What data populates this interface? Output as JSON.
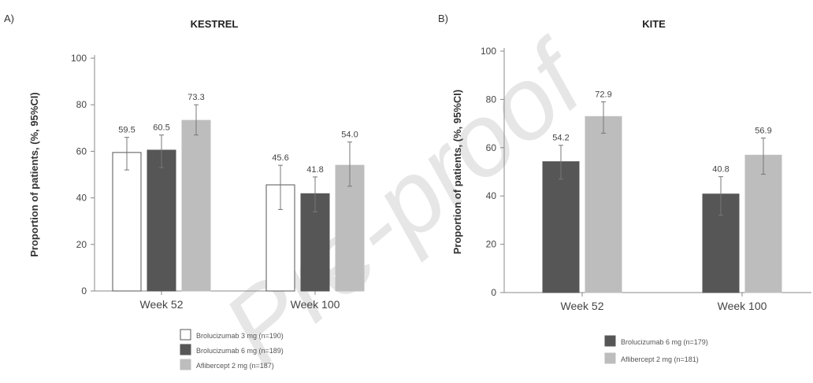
{
  "chart_data": [
    {
      "type": "bar",
      "panel_label": "A)",
      "title": "KESTREL",
      "ylabel": "Proportion of patients, (%, 95%CI)",
      "ylim": [
        0,
        100
      ],
      "yticks": [
        0,
        20,
        40,
        60,
        80,
        100
      ],
      "categories": [
        "Week 52",
        "Week 100"
      ],
      "series": [
        {
          "name": "Brolucizumab 3 mg (n=190)",
          "values": [
            59.5,
            45.6
          ],
          "ci_low": [
            52,
            35
          ],
          "ci_high": [
            66,
            54
          ],
          "color": "#ffffff",
          "stroke": "#555555"
        },
        {
          "name": "Brolucizumab 6 mg (n=189)",
          "values": [
            60.5,
            41.8
          ],
          "ci_low": [
            53,
            34
          ],
          "ci_high": [
            67,
            49
          ],
          "color": "#565656",
          "stroke": "#565656"
        },
        {
          "name": "Aflibercept 2 mg (n=187)",
          "values": [
            73.3,
            54.0
          ],
          "ci_low": [
            67,
            45
          ],
          "ci_high": [
            80,
            64
          ],
          "color": "#bdbdbd",
          "stroke": "#bdbdbd"
        }
      ],
      "data_labels": [
        [
          "59.5",
          "45.6"
        ],
        [
          "60.5",
          "41.8"
        ],
        [
          "73.3",
          "54.0"
        ]
      ]
    },
    {
      "type": "bar",
      "panel_label": "B)",
      "title": "KITE",
      "ylabel": "Proportion of patients, (%, 95%CI)",
      "ylim": [
        0,
        100
      ],
      "yticks": [
        0,
        20,
        40,
        60,
        80,
        100
      ],
      "categories": [
        "Week 52",
        "Week 100"
      ],
      "series": [
        {
          "name": "Brolucizumab 6 mg (n=179)",
          "values": [
            54.2,
            40.8
          ],
          "ci_low": [
            47,
            32
          ],
          "ci_high": [
            61,
            48
          ],
          "color": "#565656",
          "stroke": "#565656"
        },
        {
          "name": "Aflibercept 2 mg (n=181)",
          "values": [
            72.9,
            56.9
          ],
          "ci_low": [
            66,
            49
          ],
          "ci_high": [
            79,
            64
          ],
          "color": "#bdbdbd",
          "stroke": "#bdbdbd"
        }
      ],
      "data_labels": [
        [
          "54.2",
          "40.8"
        ],
        [
          "72.9",
          "56.9"
        ]
      ]
    }
  ],
  "watermark": "Pre-proof"
}
